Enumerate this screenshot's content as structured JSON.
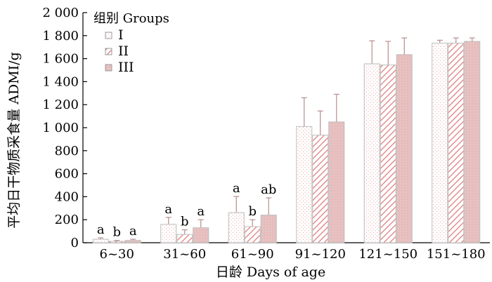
{
  "chart_data": {
    "type": "bar",
    "title": "",
    "xlabel": "日龄  Days of age",
    "ylabel": "平均日干物质采食量  ADMI/g",
    "ylim": [
      0,
      2000
    ],
    "yticks": [
      0,
      200,
      400,
      600,
      800,
      1000,
      1200,
      1400,
      1600,
      1800,
      2000
    ],
    "ytick_labels": [
      "0",
      "200",
      "400",
      "600",
      "800",
      "1 000",
      "1 200",
      "1 400",
      "1 600",
      "1 800",
      "2 000"
    ],
    "grid": false,
    "legend": {
      "title": "组别  Groups",
      "placement": "top-left"
    },
    "categories": [
      "6~30",
      "31~60",
      "61~90",
      "91~120",
      "121~150",
      "151~180"
    ],
    "series": [
      {
        "name": "I",
        "pattern": "dots",
        "color": "#e8a9a9",
        "values": [
          30,
          160,
          262,
          1010,
          1555,
          1735
        ],
        "errors": [
          12,
          60,
          140,
          250,
          200,
          25
        ],
        "letters": [
          "a",
          "a",
          "a",
          "",
          "",
          ""
        ]
      },
      {
        "name": "II",
        "pattern": "hatch",
        "color": "#e07f7f",
        "values": [
          12,
          72,
          140,
          935,
          1545,
          1735
        ],
        "errors": [
          8,
          40,
          60,
          210,
          205,
          45
        ],
        "letters": [
          "b",
          "b",
          "b",
          "",
          "",
          ""
        ]
      },
      {
        "name": "III",
        "pattern": "solid-dots",
        "color": "#e6bdbd",
        "values": [
          20,
          130,
          240,
          1050,
          1635,
          1750
        ],
        "errors": [
          10,
          70,
          150,
          240,
          145,
          30
        ],
        "letters": [
          "a",
          "a",
          "ab",
          "",
          "",
          ""
        ]
      }
    ]
  }
}
